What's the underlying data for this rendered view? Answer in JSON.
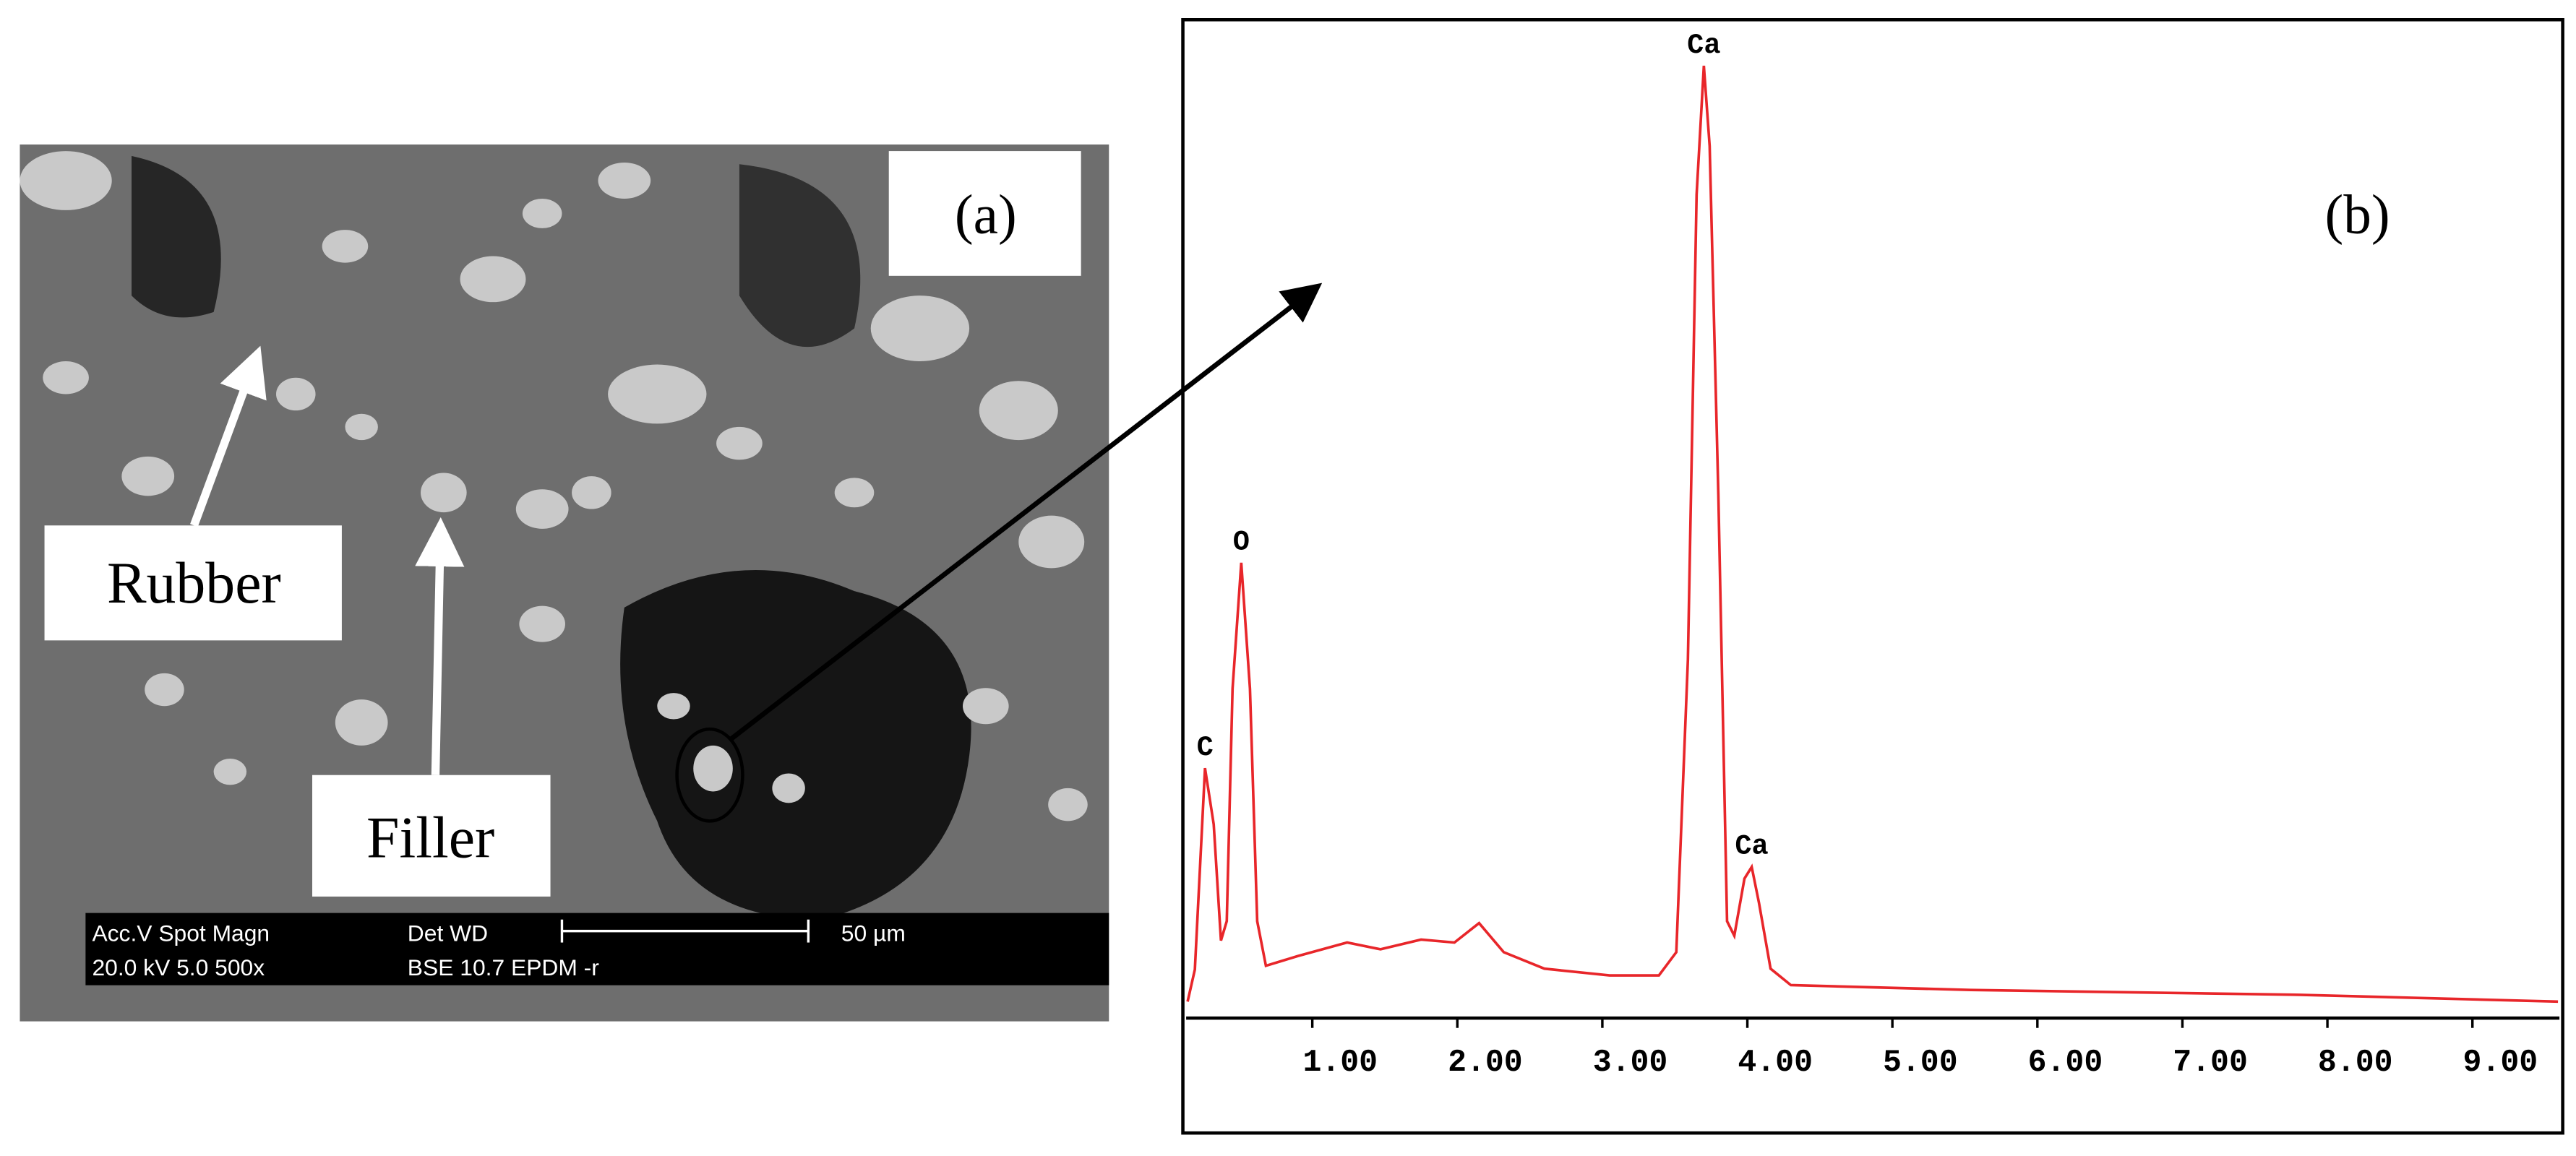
{
  "sem_image": {
    "panel_label": "(a)",
    "labels": [
      "Rubber",
      "Filler"
    ],
    "info_bar": {
      "row1_left": "Acc.V  Spot Magn",
      "row1_right": "Det  WD",
      "scale_label": "50 µm",
      "row2_left": "20.0 kV 5.0  500x",
      "row2_right": "BSE 10.7 EPDM -r"
    }
  },
  "chart_data": {
    "type": "line",
    "panel_label": "(b)",
    "x": [
      0.14,
      0.19,
      0.26,
      0.32,
      0.37,
      0.41,
      0.45,
      0.51,
      0.57,
      0.62,
      0.68,
      0.9,
      1.24,
      1.47,
      1.75,
      1.98,
      2.15,
      2.32,
      2.6,
      3.05,
      3.39,
      3.51,
      3.59,
      3.65,
      3.7,
      3.74,
      3.8,
      3.86,
      3.91,
      3.98,
      4.03,
      4.08,
      4.16,
      4.3,
      5.54,
      7.81,
      9.59
    ],
    "series": [
      {
        "color": "#e8262a",
        "values": [
          1.7,
          5,
          25.8,
          20,
          8,
          10,
          34,
          47,
          34,
          10,
          5.4,
          6.4,
          7.8,
          7.1,
          8.1,
          7.8,
          9.8,
          6.8,
          5.1,
          4.4,
          4.4,
          6.8,
          37,
          85,
          98.3,
          90,
          54,
          10,
          8.5,
          14.4,
          15.6,
          11.9,
          5.1,
          3.4,
          2.9,
          2.4,
          1.7
        ]
      }
    ],
    "annotations": [
      {
        "text": "C",
        "x": 0.26,
        "y": 25.8
      },
      {
        "text": "O",
        "x": 0.51,
        "y": 47
      },
      {
        "text": "Ca",
        "x": 3.7,
        "y": 98.3
      },
      {
        "text": "Ca",
        "x": 4.03,
        "y": 15.6
      }
    ],
    "xlim": [
      0.13,
      9.6
    ],
    "ylim": [
      0,
      100
    ],
    "xticks": [
      {
        "value": 1,
        "label": "1.00"
      },
      {
        "value": 2,
        "label": "2.00"
      },
      {
        "value": 3,
        "label": "3.00"
      },
      {
        "value": 4,
        "label": "4.00"
      },
      {
        "value": 5,
        "label": "5.00"
      },
      {
        "value": 6,
        "label": "6.00"
      },
      {
        "value": 7,
        "label": "7.00"
      },
      {
        "value": 8,
        "label": "8.00"
      },
      {
        "value": 9,
        "label": "9.00"
      }
    ]
  }
}
